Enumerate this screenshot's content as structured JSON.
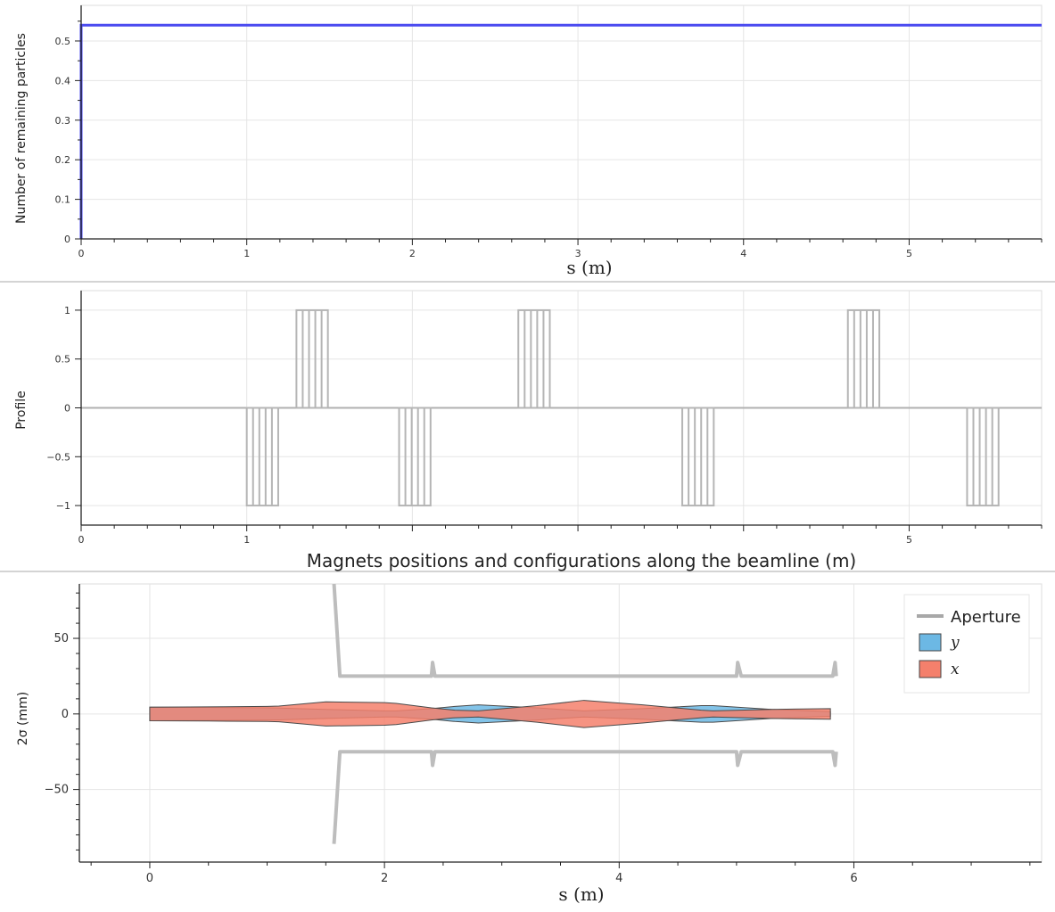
{
  "chart_data": [
    {
      "type": "line",
      "ylabel": "Number of remaining particles",
      "xlabel": "s (m)",
      "xlim": [
        0,
        5.8
      ],
      "ylim": [
        0,
        0.59
      ],
      "x_ticks": [
        "0",
        "1",
        "2",
        "3",
        "4",
        "5"
      ],
      "y_ticks": [
        "0",
        "0.1",
        "0.2",
        "0.3",
        "0.4",
        "0.5"
      ],
      "grid": true,
      "series": [
        {
          "color": "#4a4af0",
          "x": [
            0,
            0,
            0.01,
            5.8
          ],
          "y": [
            0,
            0.54,
            0.54,
            0.54
          ]
        }
      ]
    },
    {
      "type": "line",
      "ylabel": "Profile",
      "xlabel": "Magnets positions and configurations along the beamline (m)",
      "xlim": [
        0,
        5.8
      ],
      "ylim": [
        -1.2,
        1.2
      ],
      "x_ticks": [
        "0",
        "1",
        "5"
      ],
      "y_ticks": [
        "1",
        "0.5",
        "0",
        "−0.5",
        "−1"
      ],
      "grid": true,
      "magnets": [
        {
          "start": 1.0,
          "end": 1.19,
          "value": -1
        },
        {
          "start": 1.3,
          "end": 1.49,
          "value": 1
        },
        {
          "start": 1.92,
          "end": 2.11,
          "value": -1
        },
        {
          "start": 2.64,
          "end": 2.83,
          "value": 1
        },
        {
          "start": 3.63,
          "end": 3.82,
          "value": -1
        },
        {
          "start": 4.63,
          "end": 4.82,
          "value": 1
        },
        {
          "start": 5.35,
          "end": 5.54,
          "value": -1
        }
      ]
    },
    {
      "type": "area",
      "ylabel": "2σ (mm)",
      "xlabel": "s (m)",
      "xlim": [
        -0.6,
        7.6
      ],
      "ylim": [
        -98,
        86
      ],
      "x_ticks": [
        "0",
        "2",
        "4",
        "6"
      ],
      "y_ticks": [
        "50",
        "0",
        "−50"
      ],
      "grid": true,
      "legend": [
        "Aperture",
        "y",
        "x"
      ],
      "legend_position": "top-right",
      "series": [
        {
          "name": "y",
          "color": "#6cb8e4",
          "x": [
            0,
            0.5,
            1.0,
            1.1,
            1.5,
            2.0,
            2.1,
            2.4,
            2.6,
            2.8,
            3.3,
            3.7,
            4.2,
            4.7,
            4.8,
            5.3,
            5.8
          ],
          "y": [
            4.5,
            4.3,
            4.0,
            3.9,
            3.0,
            2.0,
            2.0,
            3.5,
            5.0,
            6.0,
            4.0,
            2.0,
            3.5,
            5.5,
            5.5,
            3.0,
            1.5
          ]
        },
        {
          "name": "x",
          "color": "#f4806c",
          "x": [
            0,
            0.5,
            1.0,
            1.1,
            1.5,
            2.0,
            2.1,
            2.4,
            2.6,
            2.8,
            3.3,
            3.7,
            4.2,
            4.7,
            4.8,
            5.3,
            5.8
          ],
          "y": [
            4.5,
            4.7,
            5.0,
            5.2,
            8.0,
            7.5,
            7.0,
            4.0,
            2.5,
            2.0,
            5.5,
            9.0,
            6.0,
            2.5,
            2.0,
            3.0,
            3.5
          ]
        },
        {
          "name": "Aperture",
          "color": "#bdbdbd",
          "x": [
            1.57,
            1.62,
            2.4,
            2.41,
            2.43,
            2.45,
            5.0,
            5.01,
            5.04,
            5.05,
            5.82,
            5.84,
            5.85
          ],
          "y": [
            86,
            25,
            25,
            34,
            25,
            25,
            25,
            34,
            25,
            25,
            25,
            34,
            25
          ]
        }
      ]
    }
  ]
}
